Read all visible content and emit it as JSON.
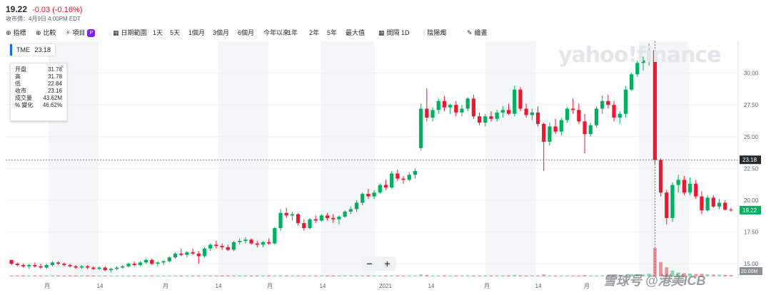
{
  "header": {
    "last_price": "19.22",
    "change": "-0.03 (-0.16%)",
    "close_time": "收市價：4月9日 4:00PM EDT"
  },
  "toolbar": {
    "items": [
      {
        "icon": "plus-circle-icon",
        "label": "指標"
      },
      {
        "icon": "plus-circle-icon",
        "label": "比較"
      },
      {
        "icon": "bolt-icon",
        "label": "項目",
        "badge": "P"
      },
      {
        "icon": "calendar-icon",
        "label": "日期範圍"
      },
      {
        "label": "1天"
      },
      {
        "label": "5天"
      },
      {
        "label": "1個月"
      },
      {
        "label": "3個月"
      },
      {
        "label": "6個月"
      },
      {
        "label": "今年以來"
      },
      {
        "label": "1年"
      },
      {
        "label": "2年"
      },
      {
        "label": "5年"
      },
      {
        "label": "最大值"
      },
      {
        "icon": "calendar-icon",
        "label": "間隔 1D"
      },
      {
        "icon": "candlestick-icon",
        "label": "陰陽燭"
      },
      {
        "icon": "pencil-icon",
        "label": "繪畫"
      }
    ]
  },
  "symbol_tag": {
    "symbol": "TME",
    "value": "23.18"
  },
  "tooltip": {
    "rows": [
      {
        "label": "开盘",
        "value": "31.78"
      },
      {
        "label": "高",
        "value": "31.78"
      },
      {
        "label": "低",
        "value": "22.84"
      },
      {
        "label": "收市",
        "value": "23.16"
      },
      {
        "label": "成交量",
        "value": "43.62M"
      },
      {
        "label": "% 變化",
        "value": "46.62%"
      }
    ]
  },
  "watermark": "yahoo!finance",
  "footer_watermark": "雪球号 @港美ICB",
  "zoom": {
    "minus": "−",
    "plus": "+"
  },
  "colors": {
    "up": "#00b061",
    "down": "#f0162f",
    "crosshair_label": "#232a31",
    "last_label": "#00b061"
  },
  "chart_data": {
    "type": "candlestick",
    "ylim": [
      14,
      32.5
    ],
    "y_ticks": [
      "15.00",
      "17.50",
      "20.00",
      "22.50",
      "25.00",
      "27.50",
      "30.00"
    ],
    "x_tick_labels": [
      "月",
      "14",
      "月",
      "14",
      "月",
      "14",
      "2021",
      "14",
      "月",
      "14",
      "月"
    ],
    "crosshair_value": "23.18",
    "last_value": "19.22",
    "volume_label": "20.00M",
    "grid": true,
    "ohlc": [
      [
        15.3,
        15.3,
        14.9,
        15.0
      ],
      [
        15.0,
        15.1,
        14.8,
        14.9
      ],
      [
        14.9,
        15.0,
        14.7,
        14.8
      ],
      [
        14.8,
        15.0,
        14.6,
        14.9
      ],
      [
        14.9,
        15.1,
        14.7,
        14.8
      ],
      [
        14.8,
        15.0,
        14.6,
        14.7
      ],
      [
        14.7,
        15.0,
        14.6,
        14.9
      ],
      [
        14.9,
        15.2,
        14.8,
        15.1
      ],
      [
        15.1,
        15.2,
        14.9,
        15.0
      ],
      [
        15.0,
        15.1,
        14.8,
        14.9
      ],
      [
        14.9,
        15.0,
        14.7,
        14.8
      ],
      [
        14.8,
        14.9,
        14.6,
        14.7
      ],
      [
        14.7,
        14.9,
        14.6,
        14.8
      ],
      [
        14.8,
        14.9,
        14.6,
        14.7
      ],
      [
        14.7,
        14.8,
        14.5,
        14.6
      ],
      [
        14.6,
        14.8,
        14.5,
        14.7
      ],
      [
        14.7,
        14.8,
        14.4,
        14.5
      ],
      [
        14.5,
        14.7,
        14.3,
        14.6
      ],
      [
        14.6,
        14.8,
        14.5,
        14.7
      ],
      [
        14.7,
        14.9,
        14.6,
        14.8
      ],
      [
        14.8,
        15.1,
        14.7,
        15.0
      ],
      [
        15.0,
        15.2,
        14.8,
        14.9
      ],
      [
        14.9,
        15.2,
        14.8,
        15.1
      ],
      [
        15.1,
        15.4,
        15.0,
        15.3
      ],
      [
        15.3,
        15.4,
        14.9,
        15.0
      ],
      [
        15.0,
        15.2,
        14.8,
        15.1
      ],
      [
        15.1,
        15.3,
        14.9,
        15.2
      ],
      [
        15.2,
        15.6,
        15.1,
        15.5
      ],
      [
        15.5,
        15.9,
        15.4,
        15.8
      ],
      [
        15.8,
        16.2,
        15.6,
        15.7
      ],
      [
        15.7,
        16.0,
        15.5,
        15.9
      ],
      [
        15.9,
        16.2,
        15.7,
        15.8
      ],
      [
        15.8,
        16.0,
        15.0,
        15.6
      ],
      [
        15.6,
        16.3,
        15.5,
        16.2
      ],
      [
        16.2,
        16.6,
        16.0,
        16.5
      ],
      [
        16.5,
        16.8,
        16.2,
        16.4
      ],
      [
        16.4,
        16.6,
        16.1,
        16.3
      ],
      [
        16.3,
        16.5,
        16.0,
        16.1
      ],
      [
        16.1,
        16.8,
        16.0,
        16.7
      ],
      [
        16.7,
        17.0,
        16.5,
        16.8
      ],
      [
        16.8,
        17.1,
        16.6,
        16.9
      ],
      [
        16.9,
        17.0,
        16.5,
        16.6
      ],
      [
        16.6,
        16.8,
        16.3,
        16.5
      ],
      [
        16.5,
        16.8,
        16.3,
        16.7
      ],
      [
        16.7,
        17.0,
        16.5,
        16.6
      ],
      [
        16.6,
        17.9,
        16.5,
        17.8
      ],
      [
        17.8,
        19.3,
        17.6,
        19.0
      ],
      [
        19.0,
        19.4,
        18.6,
        18.8
      ],
      [
        18.8,
        19.1,
        18.4,
        18.9
      ],
      [
        18.9,
        19.0,
        18.0,
        18.2
      ],
      [
        18.2,
        18.5,
        17.6,
        17.8
      ],
      [
        17.8,
        18.6,
        17.7,
        18.5
      ],
      [
        18.5,
        18.8,
        18.2,
        18.4
      ],
      [
        18.4,
        18.9,
        18.3,
        18.8
      ],
      [
        18.8,
        19.0,
        18.4,
        18.6
      ],
      [
        18.6,
        18.9,
        18.2,
        18.5
      ],
      [
        18.5,
        18.8,
        18.1,
        18.7
      ],
      [
        18.7,
        19.2,
        18.6,
        19.1
      ],
      [
        19.1,
        19.5,
        18.9,
        19.3
      ],
      [
        19.3,
        20.0,
        19.1,
        19.8
      ],
      [
        19.8,
        20.6,
        19.6,
        20.5
      ],
      [
        20.5,
        20.9,
        20.1,
        20.3
      ],
      [
        20.3,
        20.8,
        20.1,
        20.6
      ],
      [
        20.6,
        21.3,
        20.5,
        21.2
      ],
      [
        21.2,
        21.6,
        20.8,
        21.0
      ],
      [
        21.0,
        22.3,
        20.9,
        22.1
      ],
      [
        22.1,
        22.4,
        21.5,
        21.7
      ],
      [
        21.7,
        21.9,
        21.3,
        21.6
      ],
      [
        21.6,
        22.2,
        21.5,
        22.0
      ],
      [
        22.0,
        22.5,
        21.7,
        22.3
      ],
      [
        24.1,
        27.6,
        23.9,
        27.2
      ],
      [
        27.2,
        28.8,
        26.2,
        26.5
      ],
      [
        26.5,
        27.3,
        26.2,
        27.1
      ],
      [
        27.1,
        28.0,
        26.8,
        27.8
      ],
      [
        27.8,
        28.2,
        27.0,
        27.3
      ],
      [
        27.3,
        27.6,
        26.8,
        27.5
      ],
      [
        27.5,
        27.8,
        26.6,
        26.9
      ],
      [
        26.9,
        27.5,
        26.6,
        27.2
      ],
      [
        27.2,
        28.1,
        27.0,
        28.0
      ],
      [
        28.0,
        28.3,
        26.4,
        26.6
      ],
      [
        26.6,
        26.9,
        25.9,
        26.1
      ],
      [
        26.1,
        26.8,
        25.8,
        26.6
      ],
      [
        26.6,
        27.0,
        26.2,
        26.4
      ],
      [
        26.4,
        27.1,
        26.2,
        26.9
      ],
      [
        26.9,
        27.4,
        26.5,
        27.1
      ],
      [
        27.1,
        27.6,
        26.7,
        26.8
      ],
      [
        26.8,
        29.0,
        26.6,
        28.7
      ],
      [
        28.7,
        28.9,
        27.0,
        27.2
      ],
      [
        27.2,
        27.6,
        26.5,
        26.7
      ],
      [
        26.7,
        27.2,
        26.3,
        26.9
      ],
      [
        26.9,
        27.4,
        25.8,
        26.0
      ],
      [
        26.0,
        26.1,
        22.3,
        24.6
      ],
      [
        24.6,
        26.1,
        24.3,
        25.8
      ],
      [
        25.8,
        26.4,
        25.2,
        25.4
      ],
      [
        25.4,
        26.5,
        25.1,
        26.3
      ],
      [
        26.3,
        27.3,
        26.1,
        27.2
      ],
      [
        27.2,
        28.0,
        26.8,
        27.1
      ],
      [
        27.1,
        27.6,
        26.0,
        26.2
      ],
      [
        26.2,
        26.8,
        23.7,
        25.2
      ],
      [
        25.2,
        26.1,
        25.0,
        25.9
      ],
      [
        25.9,
        27.4,
        25.7,
        27.2
      ],
      [
        27.2,
        28.2,
        26.8,
        27.8
      ],
      [
        27.8,
        28.3,
        27.2,
        27.5
      ],
      [
        27.5,
        27.8,
        26.2,
        26.5
      ],
      [
        26.5,
        27.0,
        26.0,
        26.8
      ],
      [
        26.8,
        29.0,
        26.5,
        28.7
      ],
      [
        28.7,
        30.0,
        28.6,
        29.9
      ],
      [
        29.9,
        31.0,
        29.7,
        30.8
      ],
      [
        30.8,
        31.3,
        30.2,
        31.0
      ],
      [
        31.0,
        32.3,
        30.6,
        31.8
      ],
      [
        31.8,
        31.8,
        22.84,
        23.16
      ],
      [
        23.16,
        23.3,
        20.3,
        20.6
      ],
      [
        20.6,
        20.8,
        18.1,
        18.6
      ],
      [
        18.6,
        21.4,
        18.3,
        21.2
      ],
      [
        21.2,
        22.0,
        20.6,
        21.6
      ],
      [
        21.6,
        21.9,
        20.4,
        20.6
      ],
      [
        20.6,
        21.8,
        20.4,
        21.3
      ],
      [
        21.3,
        21.6,
        20.1,
        20.3
      ],
      [
        20.3,
        20.7,
        18.9,
        19.2
      ],
      [
        19.2,
        20.4,
        19.1,
        20.2
      ],
      [
        20.2,
        20.4,
        19.4,
        19.5
      ],
      [
        19.5,
        20.1,
        19.3,
        19.8
      ],
      [
        19.8,
        20.0,
        19.2,
        19.25
      ],
      [
        19.25,
        19.4,
        19.1,
        19.22
      ]
    ],
    "volume": [
      0.9,
      0.7,
      0.6,
      0.6,
      0.5,
      0.6,
      0.5,
      0.7,
      0.5,
      0.5,
      0.5,
      0.6,
      0.5,
      0.5,
      0.6,
      0.5,
      0.7,
      0.6,
      0.5,
      0.5,
      0.7,
      0.6,
      0.6,
      0.8,
      0.7,
      0.6,
      0.6,
      0.8,
      0.9,
      0.7,
      0.6,
      0.6,
      0.9,
      0.8,
      1.0,
      0.8,
      0.7,
      0.7,
      0.9,
      0.8,
      0.8,
      0.7,
      0.7,
      0.7,
      0.7,
      1.2,
      1.8,
      1.0,
      0.9,
      1.0,
      1.1,
      0.9,
      0.8,
      0.8,
      0.8,
      0.8,
      0.8,
      0.9,
      0.9,
      1.1,
      1.3,
      1.0,
      1.0,
      1.2,
      1.1,
      1.4,
      1.1,
      1.0,
      1.0,
      1.1,
      3.2,
      2.2,
      1.4,
      1.5,
      1.3,
      1.2,
      1.3,
      1.1,
      1.4,
      1.6,
      1.4,
      1.2,
      1.1,
      1.2,
      1.1,
      1.2,
      2.4,
      1.8,
      1.4,
      1.2,
      1.4,
      3.0,
      1.8,
      1.3,
      1.3,
      1.4,
      1.5,
      1.4,
      2.3,
      1.5,
      1.6,
      1.8,
      1.5,
      1.6,
      1.3,
      2.6,
      3.3,
      3.6,
      3.0,
      4.4,
      43.62,
      22.0,
      14.0,
      9.0,
      6.0,
      5.0,
      4.5,
      4.0,
      4.2,
      3.5,
      3.0,
      2.8,
      2.6,
      2.2
    ]
  }
}
